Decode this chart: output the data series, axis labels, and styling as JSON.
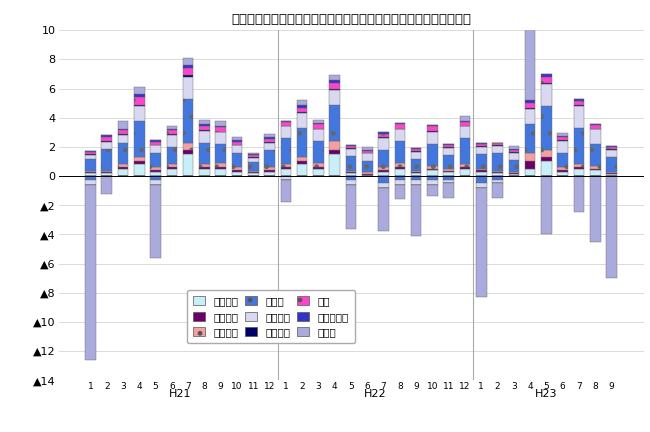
{
  "title": "三重県鉱工業生産の業種別前月比寄与度の推移（季節調整済指数）",
  "categories": [
    "一般機械",
    "電気機械",
    "情報通信",
    "電デバ",
    "輸送機械",
    "窯業土石",
    "化学",
    "その他工業",
    "その他"
  ],
  "colors": [
    "#c8eef8",
    "#6b006b",
    "#f4a0a0",
    "#4477dd",
    "#d8d8f0",
    "#00006b",
    "#ff44cc",
    "#3333cc",
    "#aaaadd"
  ],
  "hatches": [
    "",
    "",
    ".",
    ".",
    "",
    "",
    ".",
    "",
    ""
  ],
  "edgecolors": [
    "#888888",
    "#000000",
    "#888888",
    "#2255aa",
    "#888888",
    "#000044",
    "#aa0088",
    "#000088",
    "#8888aa"
  ],
  "ylim": [
    -14,
    10
  ],
  "yticks": [
    10,
    8,
    6,
    4,
    2,
    0,
    -2,
    -4,
    -6,
    -8,
    -10,
    -12,
    -14
  ],
  "month_labels": [
    "1",
    "2",
    "3",
    "4",
    "5",
    "6",
    "7",
    "8",
    "9",
    "10",
    "11",
    "12",
    "1",
    "2",
    "3",
    "4",
    "5",
    "6",
    "7",
    "8",
    "9",
    "10",
    "11",
    "12",
    "1",
    "2",
    "3",
    "4",
    "5",
    "6",
    "7",
    "8",
    "9"
  ],
  "year_labels": [
    {
      "label": "H21",
      "start": 0,
      "end": 11
    },
    {
      "label": "H22",
      "start": 12,
      "end": 23
    },
    {
      "label": "H23",
      "start": 24,
      "end": 32
    }
  ],
  "pos_data": {
    "一般機械": [
      0.2,
      0.2,
      0.5,
      0.8,
      0.3,
      0.5,
      1.5,
      0.5,
      0.5,
      0.3,
      0.2,
      0.3,
      0.5,
      0.8,
      0.5,
      1.5,
      0.2,
      0.1,
      0.3,
      0.5,
      0.2,
      0.4,
      0.3,
      0.5,
      0.3,
      0.2,
      0.15,
      0.5,
      1.0,
      0.3,
      0.5,
      0.4,
      0.15
    ],
    "電気機械": [
      0.05,
      0.05,
      0.1,
      0.2,
      0.1,
      0.1,
      0.3,
      0.1,
      0.1,
      0.1,
      0.05,
      0.1,
      0.1,
      0.2,
      0.1,
      0.3,
      0.05,
      0.05,
      0.1,
      0.1,
      0.05,
      0.1,
      0.05,
      0.1,
      0.1,
      0.05,
      0.05,
      0.5,
      0.3,
      0.1,
      0.1,
      0.1,
      0.05
    ],
    "情報通信": [
      0.1,
      0.1,
      0.2,
      0.3,
      0.2,
      0.2,
      0.5,
      0.2,
      0.3,
      0.2,
      0.1,
      0.2,
      0.2,
      0.3,
      0.3,
      0.6,
      0.1,
      0.1,
      0.2,
      0.3,
      0.1,
      0.2,
      0.1,
      0.2,
      0.1,
      0.1,
      0.1,
      0.6,
      0.5,
      0.2,
      0.2,
      0.2,
      0.1
    ],
    "電デバ": [
      0.8,
      1.5,
      1.5,
      2.5,
      1.0,
      1.2,
      3.0,
      1.5,
      1.3,
      1.0,
      0.6,
      1.2,
      1.8,
      2.0,
      1.5,
      2.5,
      1.0,
      0.8,
      1.2,
      1.5,
      0.8,
      1.5,
      1.0,
      1.8,
      1.0,
      1.2,
      0.8,
      2.0,
      3.0,
      1.0,
      2.5,
      1.5,
      1.0
    ],
    "輸送機械": [
      0.3,
      0.5,
      0.5,
      1.0,
      0.5,
      0.8,
      1.5,
      0.8,
      0.8,
      0.5,
      0.3,
      0.5,
      0.8,
      1.0,
      0.8,
      1.0,
      0.5,
      0.5,
      0.8,
      0.8,
      0.5,
      0.8,
      0.5,
      0.8,
      0.5,
      0.5,
      0.5,
      1.0,
      1.5,
      0.8,
      1.5,
      1.0,
      0.5
    ],
    "窯業土石": [
      0.05,
      0.05,
      0.05,
      0.1,
      0.05,
      0.05,
      0.1,
      0.05,
      0.05,
      0.05,
      0.05,
      0.05,
      0.05,
      0.1,
      0.05,
      0.1,
      0.05,
      0.05,
      0.05,
      0.05,
      0.05,
      0.1,
      0.05,
      0.05,
      0.05,
      0.05,
      0.05,
      0.1,
      0.1,
      0.05,
      0.05,
      0.05,
      0.05
    ],
    "化学": [
      0.15,
      0.3,
      0.3,
      0.5,
      0.2,
      0.3,
      0.5,
      0.3,
      0.3,
      0.2,
      0.15,
      0.2,
      0.25,
      0.3,
      0.3,
      0.4,
      0.15,
      0.15,
      0.25,
      0.3,
      0.15,
      0.3,
      0.15,
      0.25,
      0.15,
      0.15,
      0.15,
      0.3,
      0.4,
      0.2,
      0.3,
      0.25,
      0.15
    ],
    "その他工業": [
      0.05,
      0.1,
      0.1,
      0.2,
      0.1,
      0.1,
      0.2,
      0.1,
      0.1,
      0.1,
      0.05,
      0.1,
      0.1,
      0.2,
      0.1,
      0.2,
      0.05,
      0.05,
      0.1,
      0.1,
      0.05,
      0.1,
      0.05,
      0.1,
      0.05,
      0.05,
      0.05,
      0.2,
      0.2,
      0.1,
      0.1,
      0.1,
      0.05
    ],
    "その他": [
      0.0,
      0.0,
      0.5,
      0.5,
      0.0,
      0.2,
      0.5,
      0.3,
      0.3,
      0.2,
      0.1,
      0.2,
      0.0,
      0.3,
      0.2,
      0.3,
      0.0,
      0.2,
      0.0,
      0.0,
      0.0,
      0.0,
      0.0,
      0.3,
      0.0,
      0.0,
      0.2,
      6.5,
      0.0,
      0.2,
      0.0,
      0.0,
      0.0
    ]
  },
  "neg_data": {
    "一般機械": [
      0,
      0,
      0,
      0,
      0,
      0,
      0,
      0,
      0,
      0,
      0,
      0,
      0,
      0,
      0,
      0,
      0,
      0,
      0,
      0,
      0,
      0,
      0,
      0,
      0,
      0,
      0,
      0,
      0,
      0,
      0,
      0,
      0
    ],
    "電気機械": [
      0,
      0,
      0,
      0,
      0,
      0,
      0,
      0,
      0,
      0,
      0,
      0,
      0,
      0,
      0,
      0,
      0,
      0,
      0,
      0,
      0,
      0,
      0,
      0,
      0,
      0,
      0,
      0,
      0,
      0,
      0,
      0,
      0
    ],
    "情報通信": [
      0,
      0,
      0,
      0,
      0,
      0,
      0,
      0,
      0,
      0,
      0,
      0,
      0,
      0,
      0,
      0,
      0,
      0,
      0,
      0,
      0,
      0,
      0,
      0,
      0,
      0,
      0,
      0,
      0,
      0,
      0,
      0,
      0
    ],
    "電デバ": [
      -0.3,
      0,
      0,
      0,
      -0.3,
      0,
      0,
      0,
      0,
      0,
      0,
      0,
      0,
      0,
      0,
      0,
      -0.3,
      0,
      -0.5,
      -0.3,
      -0.3,
      -0.3,
      -0.3,
      0,
      -0.5,
      -0.3,
      0,
      0,
      0,
      0,
      0,
      0,
      0
    ],
    "輸送機械": [
      -0.3,
      0,
      0,
      0,
      -0.3,
      0,
      0,
      0,
      0,
      0,
      0,
      0,
      -0.3,
      0,
      0,
      0,
      -0.3,
      0,
      -0.3,
      -0.3,
      -0.3,
      -0.3,
      -0.2,
      0,
      -0.3,
      -0.2,
      0,
      0,
      0,
      0,
      0,
      0,
      0
    ],
    "窯業土石": [
      0,
      0,
      0,
      0,
      0,
      0,
      0,
      0,
      0,
      0,
      0,
      0,
      0,
      0,
      0,
      0,
      0,
      0,
      0,
      0,
      0,
      0,
      0,
      0,
      0,
      0,
      0,
      0,
      0,
      0,
      0,
      0,
      0
    ],
    "化学": [
      0,
      0,
      0,
      0,
      0,
      0,
      0,
      0,
      0,
      0,
      0,
      0,
      0,
      0,
      0,
      0,
      0,
      0,
      0,
      0,
      0,
      0,
      0,
      0,
      0,
      0,
      0,
      0,
      0,
      0,
      0,
      0,
      0
    ],
    "その他工業": [
      0,
      0,
      0,
      0,
      0,
      0,
      0,
      0,
      0,
      0,
      0,
      0,
      0,
      0,
      0,
      0,
      0,
      0,
      0,
      0,
      0,
      0,
      0,
      0,
      0,
      0,
      0,
      0,
      0,
      0,
      0,
      0,
      0
    ],
    "その他": [
      -12.0,
      -1.2,
      0,
      0,
      -5.0,
      0,
      0,
      0,
      0,
      0,
      0,
      0,
      -1.5,
      0,
      0,
      0,
      -3.0,
      0,
      -3.0,
      -1.0,
      -3.5,
      -0.8,
      -1.0,
      0,
      -7.5,
      -1.0,
      0,
      0,
      -4.0,
      0,
      -2.5,
      -4.5,
      -7.0
    ]
  }
}
